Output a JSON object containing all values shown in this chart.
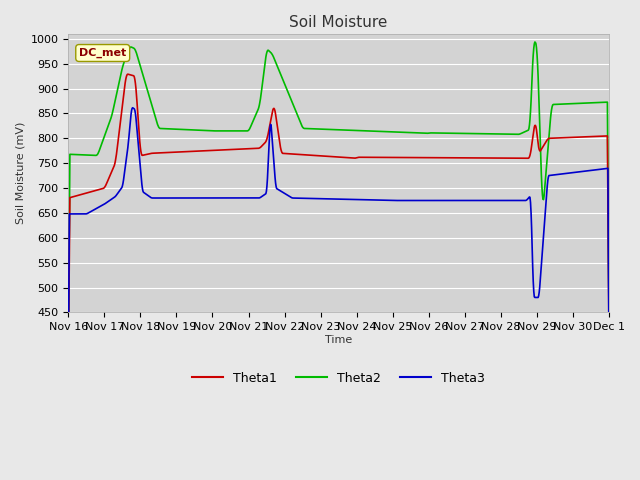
{
  "title": "Soil Moisture",
  "ylabel": "Soil Moisture (mV)",
  "xlabel": "Time",
  "annotation": "DC_met",
  "ylim": [
    450,
    1010
  ],
  "yticks": [
    450,
    500,
    550,
    600,
    650,
    700,
    750,
    800,
    850,
    900,
    950,
    1000
  ],
  "fig_bg_color": "#e8e8e8",
  "plot_bg_color": "#d3d3d3",
  "grid_color": "#ffffff",
  "line_colors": {
    "Theta1": "#cc0000",
    "Theta2": "#00bb00",
    "Theta3": "#0000cc"
  },
  "legend_labels": [
    "Theta1",
    "Theta2",
    "Theta3"
  ],
  "x_tick_labels": [
    "Nov 16",
    "Nov 17",
    "Nov 18",
    "Nov 19",
    "Nov 20",
    "Nov 21",
    "Nov 22",
    "Nov 23",
    "Nov 24",
    "Nov 25",
    "Nov 26",
    "Nov 27",
    "Nov 28",
    "Nov 29",
    "Nov 30",
    "Dec 1"
  ],
  "num_points": 1000
}
